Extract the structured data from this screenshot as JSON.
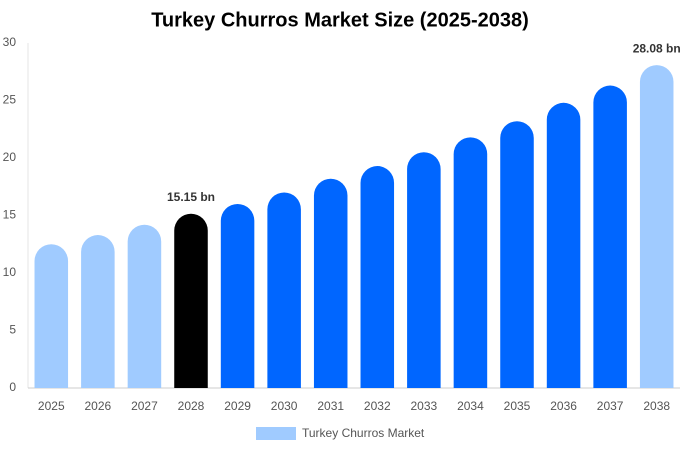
{
  "chart_data": {
    "type": "bar",
    "title": "Turkey Churros Market Size (2025-2038)",
    "categories": [
      "2025",
      "2026",
      "2027",
      "2028",
      "2029",
      "2030",
      "2031",
      "2032",
      "2033",
      "2034",
      "2035",
      "2036",
      "2037",
      "2038"
    ],
    "series": [
      {
        "name": "Turkey Churros Market",
        "color": "#a0cbff",
        "colors": [
          "#a0cbff",
          "#a0cbff",
          "#a0cbff",
          "#000000",
          "#0066ff",
          "#0066ff",
          "#0066ff",
          "#0066ff",
          "#0066ff",
          "#0066ff",
          "#0066ff",
          "#0066ff",
          "#0066ff",
          "#a0cbff"
        ],
        "values": [
          12.5,
          13.3,
          14.2,
          15.15,
          16.0,
          17.0,
          18.2,
          19.3,
          20.5,
          21.8,
          23.2,
          24.8,
          26.3,
          28.08
        ],
        "value_labels": [
          null,
          null,
          null,
          "15.15 bn",
          null,
          null,
          null,
          null,
          null,
          null,
          null,
          null,
          null,
          "28.08 bn"
        ]
      }
    ],
    "ylim": [
      0,
      30
    ],
    "yticks": [
      0,
      5,
      10,
      15,
      20,
      25,
      30
    ],
    "grid": false
  }
}
